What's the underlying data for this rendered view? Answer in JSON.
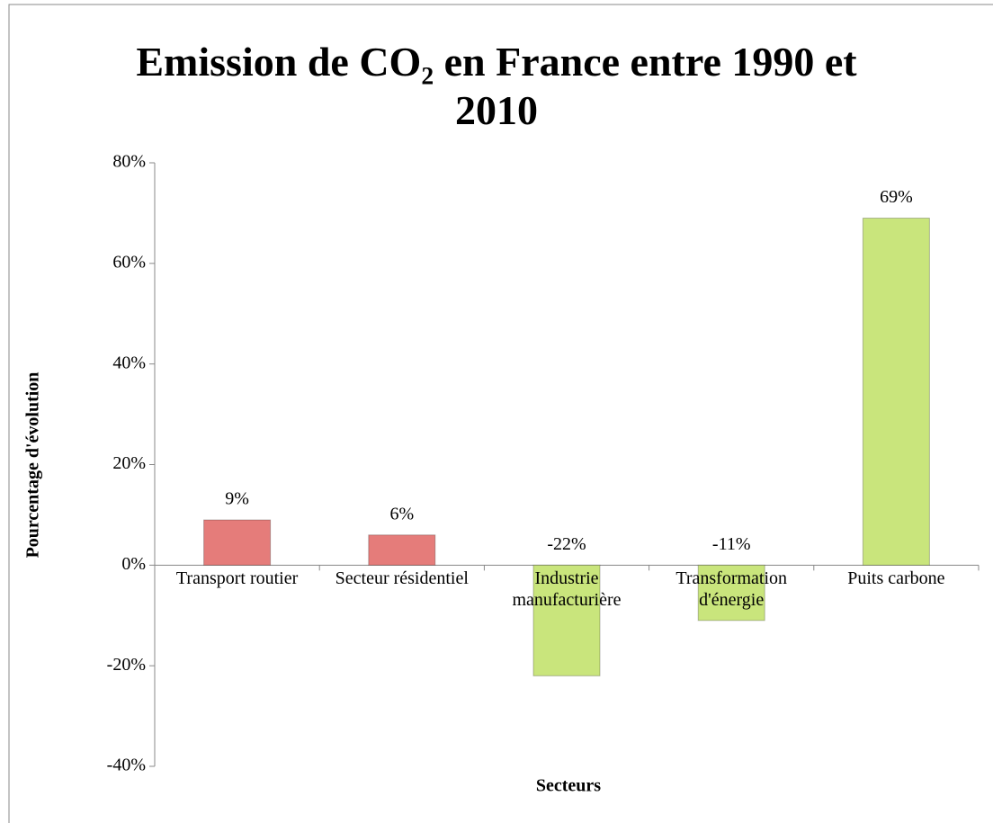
{
  "chart_data": {
    "type": "bar",
    "title": "Emission de CO₂ en France entre 1990 et 2010",
    "x_label": "Secteurs",
    "y_label": "Pourcentage d'évolution",
    "categories": [
      "Transport routier",
      "Secteur résidentiel",
      "Industrie manufacturière",
      "Transformation d'énergie",
      "Puits carbone"
    ],
    "values": [
      9,
      6,
      -22,
      -11,
      69
    ],
    "value_labels": [
      "9%",
      "6%",
      "-22%",
      "-11%",
      "69%"
    ],
    "colors": [
      "#e57c7a",
      "#e57c7a",
      "#c9e57c",
      "#c9e57c",
      "#c9e57c"
    ],
    "ylim": [
      -40,
      80
    ],
    "yticks": [
      {
        "value": -40,
        "label": "-40%"
      },
      {
        "value": -20,
        "label": "-20%"
      },
      {
        "value": 0,
        "label": "0%"
      },
      {
        "value": 20,
        "label": "20%"
      },
      {
        "value": 40,
        "label": "40%"
      },
      {
        "value": 60,
        "label": "60%"
      },
      {
        "value": 80,
        "label": "80%"
      }
    ]
  }
}
